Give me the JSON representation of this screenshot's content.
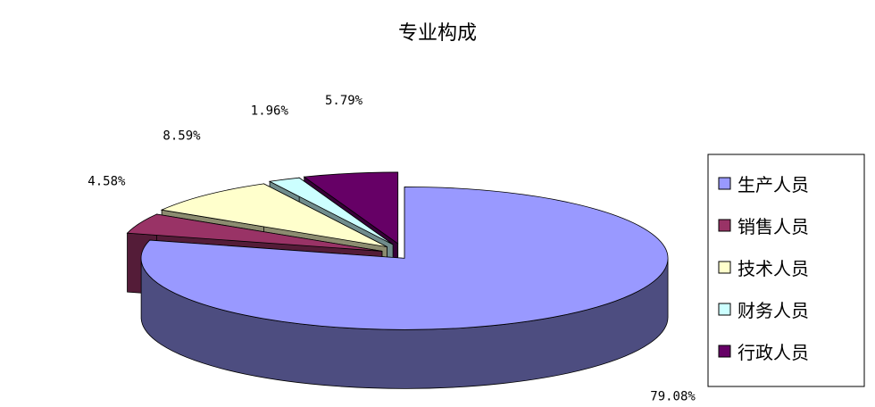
{
  "chart_data": {
    "type": "pie",
    "title": "专业构成",
    "categories": [
      "生产人员",
      "销售人员",
      "技术人员",
      "财务人员",
      "行政人员"
    ],
    "values": [
      79.08,
      4.58,
      8.59,
      1.96,
      5.79
    ],
    "data_labels": [
      "79.08%",
      "4.58%",
      "8.59%",
      "1.96%",
      "5.79%"
    ],
    "colors": [
      "#9999ff",
      "#993366",
      "#ffffcc",
      "#ccffff",
      "#660066"
    ],
    "three_d": true,
    "exploded": true,
    "legend_position": "right"
  }
}
